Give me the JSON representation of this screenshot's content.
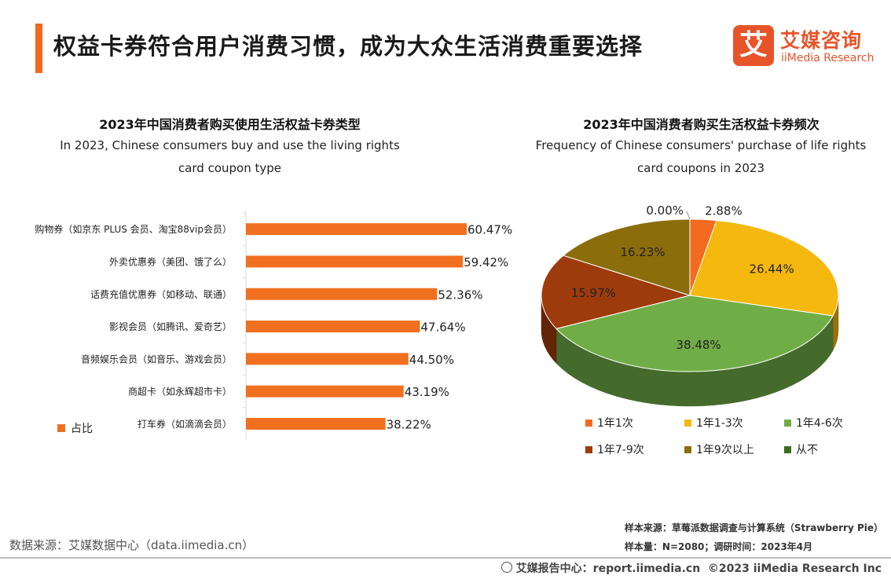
{
  "header": {
    "title": "权益卡券符合用户消费习惯，成为大众生活消费重要选择",
    "logo_mark": "艾",
    "logo_cn": "艾媒咨询",
    "logo_en": "iiMedia Research"
  },
  "left_chart": {
    "title": "2023年中国消费者购买使用生活权益卡券类型",
    "subtitle_line1": "In 2023, Chinese consumers buy and use the living rights",
    "subtitle_line2": "card coupon type",
    "legend": "占比"
  },
  "right_chart": {
    "title": "2023年中国消费者购买生活权益卡券频次",
    "subtitle_line1": "Frequency of Chinese consumers' purchase of life rights",
    "subtitle_line2": "card coupons in 2023"
  },
  "chart_data": [
    {
      "type": "bar",
      "orientation": "horizontal",
      "title": "2023年中国消费者购买使用生活权益卡券类型",
      "categories": [
        "购物券（如京东 PLUS 会员、淘宝88vip会员）",
        "外卖优惠券（美团、饿了么）",
        "话费充值优惠券（如移动、联通）",
        "影视会员（如腾讯、爱奇艺）",
        "音频娱乐会员（如音乐、游戏会员）",
        "商超卡（如永辉超市卡）",
        "打车券（如滴滴会员）"
      ],
      "values": [
        60.47,
        59.42,
        52.36,
        47.64,
        44.5,
        43.19,
        38.22
      ],
      "value_labels": [
        "60.47%",
        "59.42%",
        "52.36%",
        "47.64%",
        "44.50%",
        "43.19%",
        "38.22%"
      ],
      "series_name": "占比",
      "color": "#f07020",
      "xlim": [
        0,
        70
      ],
      "unit": "%"
    },
    {
      "type": "pie",
      "style": "3d",
      "title": "2023年中国消费者购买生活权益卡券频次",
      "labels": [
        "1年1次",
        "1年1-3次",
        "1年4-6次",
        "1年7-9次",
        "1年9次以上",
        "从不"
      ],
      "values": [
        2.88,
        26.44,
        38.48,
        15.97,
        16.23,
        0.0
      ],
      "value_labels": [
        "2.88%",
        "26.44%",
        "38.48%",
        "15.97%",
        "16.23%",
        "0.00%"
      ],
      "colors": [
        "#f26b21",
        "#f5b80f",
        "#70ad47",
        "#9e3b0c",
        "#8c6d0b",
        "#3b6d1d"
      ],
      "legend_position": "bottom"
    }
  ],
  "footer": {
    "data_source": "数据来源：艾媒数据中心（data.iimedia.cn）",
    "sample_source": "样本来源：草莓派数据调查与计算系统（Strawberry Pie）",
    "sample_size": "样本量：N=2080；调研时间：2023年4月",
    "report": "艾媒报告中心：report.iimedia.cn",
    "copyright": "©2023  iiMedia Research  Inc"
  }
}
